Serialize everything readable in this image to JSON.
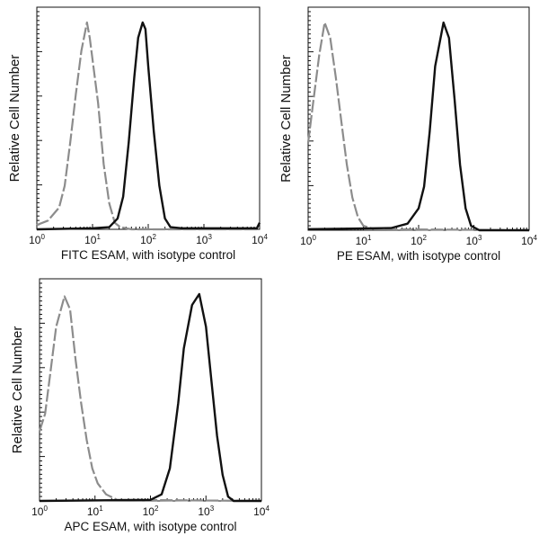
{
  "chart_data": [
    {
      "type": "line",
      "title": "",
      "xlabel": "FITC  ESAM,  with isotype control",
      "ylabel": "Relative Cell Number",
      "xscale": "log",
      "xlim": [
        1,
        10000
      ],
      "ylim": [
        0,
        100
      ],
      "xticks": [
        {
          "base": "10",
          "exp": "0"
        },
        {
          "base": "10",
          "exp": "1"
        },
        {
          "base": "10",
          "exp": "2"
        },
        {
          "base": "10",
          "exp": "3"
        },
        {
          "base": "10",
          "exp": "4"
        }
      ],
      "series": [
        {
          "name": "isotype control",
          "style": "dashed",
          "color": "#8c8c8c",
          "log_x": [
            0,
            0.2,
            0.4,
            0.5,
            0.6,
            0.7,
            0.8,
            0.9,
            0.95,
            1.0,
            1.1,
            1.2,
            1.3,
            1.4,
            1.5,
            1.7,
            4
          ],
          "y": [
            2,
            4,
            10,
            20,
            40,
            62,
            82,
            95,
            88,
            78,
            58,
            30,
            12,
            3,
            1,
            0,
            0
          ]
        },
        {
          "name": "ESAM",
          "style": "solid",
          "color": "#111111",
          "log_x": [
            0,
            1.0,
            1.3,
            1.45,
            1.55,
            1.65,
            1.75,
            1.82,
            1.9,
            1.95,
            2.0,
            2.1,
            2.2,
            2.3,
            2.4,
            2.6,
            3.95,
            4
          ],
          "y": [
            0,
            0.5,
            1,
            5,
            15,
            40,
            70,
            88,
            95,
            92,
            75,
            45,
            20,
            5,
            1,
            0.5,
            0.5,
            3
          ]
        }
      ]
    },
    {
      "type": "line",
      "title": "",
      "xlabel": "PE ESAM,  with isotype control",
      "ylabel": "Relative Cell Number",
      "xscale": "log",
      "xlim": [
        1,
        10000
      ],
      "ylim": [
        0,
        100
      ],
      "xticks": [
        {
          "base": "10",
          "exp": "0"
        },
        {
          "base": "10",
          "exp": "1"
        },
        {
          "base": "10",
          "exp": "2"
        },
        {
          "base": "10",
          "exp": "3"
        },
        {
          "base": "10",
          "exp": "4"
        }
      ],
      "series": [
        {
          "name": "isotype control",
          "style": "dashed",
          "color": "#8c8c8c",
          "log_x": [
            0,
            0.1,
            0.2,
            0.3,
            0.4,
            0.5,
            0.6,
            0.7,
            0.8,
            0.9,
            1.0,
            1.2,
            4
          ],
          "y": [
            40,
            60,
            80,
            95,
            88,
            70,
            50,
            30,
            15,
            6,
            2,
            0.5,
            0
          ]
        },
        {
          "name": "ESAM",
          "style": "solid",
          "color": "#111111",
          "log_x": [
            0,
            1.5,
            1.8,
            2.0,
            2.1,
            2.2,
            2.3,
            2.45,
            2.55,
            2.65,
            2.75,
            2.85,
            2.95,
            3.1,
            4
          ],
          "y": [
            0.5,
            1,
            3,
            10,
            20,
            45,
            75,
            95,
            88,
            60,
            30,
            10,
            2,
            0,
            0
          ]
        }
      ]
    },
    {
      "type": "line",
      "title": "",
      "xlabel": "APC ESAM, with isotype control",
      "ylabel": "Relative Cell Number",
      "xscale": "log",
      "xlim": [
        1,
        10000
      ],
      "ylim": [
        0,
        100
      ],
      "xticks": [
        {
          "base": "10",
          "exp": "0"
        },
        {
          "base": "10",
          "exp": "1"
        },
        {
          "base": "10",
          "exp": "2"
        },
        {
          "base": "10",
          "exp": "3"
        },
        {
          "base": "10",
          "exp": "4"
        }
      ],
      "series": [
        {
          "name": "isotype control",
          "style": "dashed",
          "color": "#8c8c8c",
          "log_x": [
            0,
            0.1,
            0.2,
            0.3,
            0.45,
            0.55,
            0.65,
            0.75,
            0.85,
            0.95,
            1.05,
            1.2,
            1.4,
            4
          ],
          "y": [
            32,
            40,
            60,
            80,
            94,
            88,
            65,
            45,
            28,
            15,
            8,
            3,
            0.5,
            0
          ]
        },
        {
          "name": "ESAM",
          "style": "solid",
          "color": "#111111",
          "log_x": [
            0,
            2.0,
            2.2,
            2.35,
            2.5,
            2.6,
            2.75,
            2.88,
            3.0,
            3.1,
            3.2,
            3.3,
            3.4,
            3.5,
            4
          ],
          "y": [
            0,
            0.5,
            3,
            15,
            45,
            70,
            90,
            95,
            80,
            55,
            30,
            12,
            2,
            0,
            0
          ]
        }
      ]
    }
  ]
}
